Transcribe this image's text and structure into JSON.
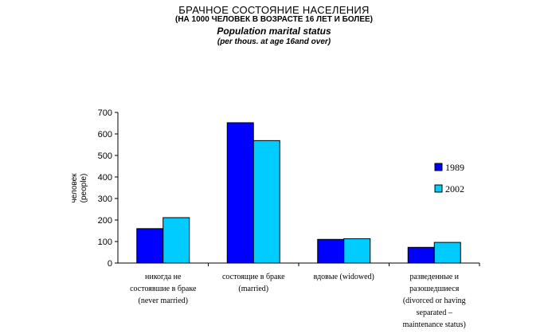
{
  "titles": {
    "line1": "БРАЧНОЕ СОСТОЯНИЕ НАСЕЛЕНИЯ",
    "line2": "(НА 1000 ЧЕЛОВЕК В ВОЗРАСТЕ 16 ЛЕТ И БОЛЕЕ)",
    "line3": "Population marital status",
    "line4": "(per thous. at  age 16and over)"
  },
  "chart_data": {
    "type": "bar",
    "ylabel": [
      "человек",
      "(people)"
    ],
    "ylim": [
      0,
      700
    ],
    "yticks": [
      "0",
      "100",
      "200",
      "300",
      "400",
      "500",
      "600",
      "700"
    ],
    "grid": false,
    "legend_position": "right",
    "categories": [
      [
        "никогда не",
        "состоявшие в браке",
        "(never married)"
      ],
      [
        "состоящие в браке",
        "(married)"
      ],
      [
        "вдовые (widowed)"
      ],
      [
        "разведенные и",
        "разошедшиеся",
        "(divorced or having",
        "separated –",
        "maintenance status)"
      ]
    ],
    "series": [
      {
        "name": "1989",
        "color": "#0000FF",
        "values": [
          160,
          652,
          110,
          73
        ]
      },
      {
        "name": "2002",
        "color": "#00CCFF",
        "values": [
          211,
          569,
          113,
          96
        ]
      }
    ]
  }
}
